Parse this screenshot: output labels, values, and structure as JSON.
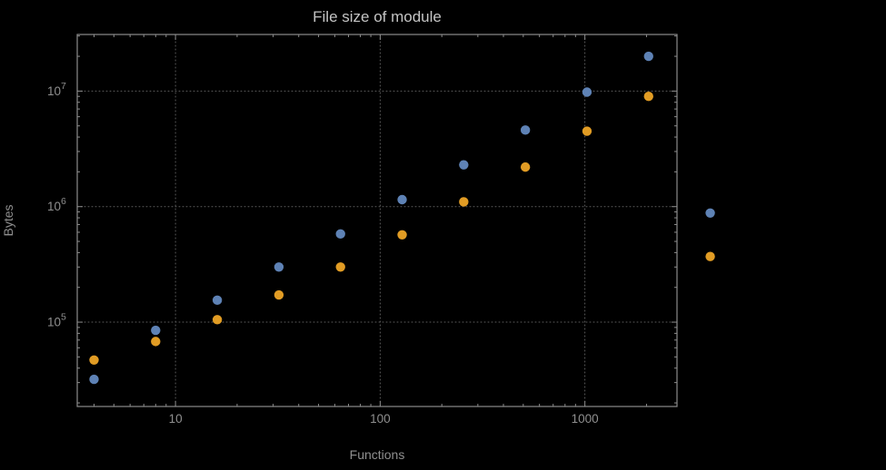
{
  "chart_data": {
    "type": "scatter",
    "title": "File size of module",
    "xlabel": "Functions",
    "ylabel": "Bytes",
    "x_scale": "log",
    "y_scale": "log",
    "xlog_range": [
      0.52,
      3.45
    ],
    "ylog_range": [
      4.27,
      7.49
    ],
    "x_major_ticks": [
      10,
      100,
      1000
    ],
    "x_tick_labels": [
      "10",
      "100",
      "1000"
    ],
    "y_tick_base": "10",
    "y_tick_exponents": [
      5,
      6,
      7
    ],
    "grid": true,
    "legend": "none",
    "x": [
      4,
      8,
      16,
      32,
      64,
      128,
      256,
      512,
      1024,
      2048,
      4096
    ],
    "series": [
      {
        "name": "blue",
        "color": "#5e82b5",
        "values": [
          32000,
          85000,
          155000,
          300000,
          580000,
          1150000,
          2300000,
          4600000,
          9800000,
          20000000,
          880000
        ]
      },
      {
        "name": "orange",
        "color": "#e19c24",
        "values": [
          47000,
          68000,
          105000,
          172000,
          300000,
          570000,
          1100000,
          2200000,
          4500000,
          9000000,
          370000
        ]
      }
    ],
    "colors": {
      "background": "#000000",
      "frame": "#8c8c8c",
      "grid": "#5c5c5c",
      "tick_labels": "#8f8f8f",
      "title": "#c4c4c4",
      "axis_labels": "#8f8f8f"
    }
  }
}
